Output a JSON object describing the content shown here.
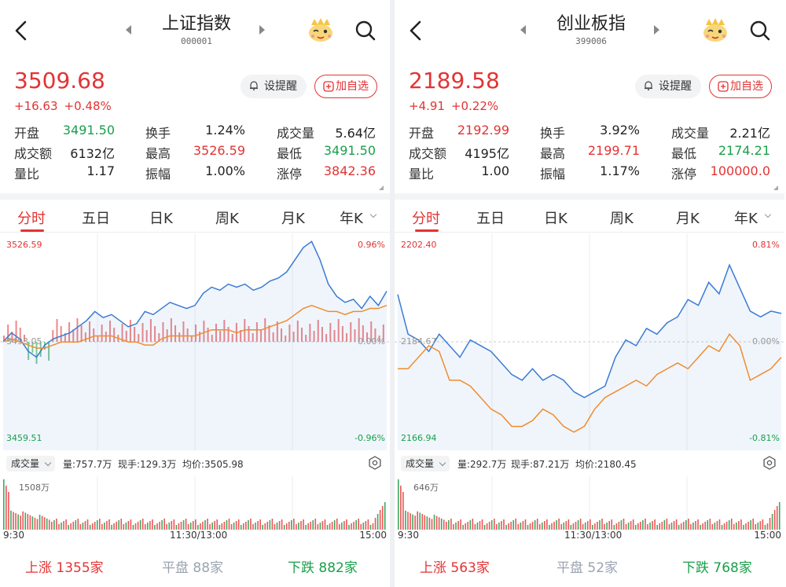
{
  "panels": [
    {
      "title": "上证指数",
      "code": "000001",
      "price": "3509.68",
      "change": "+16.63",
      "change_pct": "+0.48%",
      "alert_label": "设提醒",
      "add_label": "加自选",
      "stats": [
        [
          {
            "label": "开盘",
            "value": "3491.50",
            "color": "grn"
          },
          {
            "label": "换手",
            "value": "1.24%",
            "color": "blk"
          },
          {
            "label": "成交量",
            "value": "5.64亿",
            "color": "blk"
          }
        ],
        [
          {
            "label": "成交额",
            "value": "6132亿",
            "color": "blk"
          },
          {
            "label": "最高",
            "value": "3526.59",
            "color": "red"
          },
          {
            "label": "最低",
            "value": "3491.50",
            "color": "grn"
          }
        ],
        [
          {
            "label": "量比",
            "value": "1.17",
            "color": "blk"
          },
          {
            "label": "振幅",
            "value": "1.00%",
            "color": "blk"
          },
          {
            "label": "涨停",
            "value": "3842.36",
            "color": "red"
          }
        ]
      ],
      "tabs": [
        "分时",
        "五日",
        "日K",
        "周K",
        "月K",
        "年K"
      ],
      "axis": {
        "top_price": "3526.59",
        "mid_price": "3493.05",
        "bottom_price": "3459.51",
        "top_pct": "0.96%",
        "mid_pct": "0.00%",
        "bottom_pct": "-0.96%"
      },
      "vol": {
        "selector": "成交量",
        "amount": "量:757.7万",
        "hand": "现手:129.3万",
        "avg": "均价:3505.98",
        "max_label": "1508万"
      },
      "time": [
        "9:30",
        "11:30/13:00",
        "15:00"
      ],
      "breadth": {
        "up_label": "上涨",
        "up": "1355家",
        "flat_label": "平盘",
        "flat": "88家",
        "down_label": "下跌",
        "down": "882家"
      }
    },
    {
      "title": "创业板指",
      "code": "399006",
      "price": "2189.58",
      "change": "+4.91",
      "change_pct": "+0.22%",
      "alert_label": "设提醒",
      "add_label": "加自选",
      "stats": [
        [
          {
            "label": "开盘",
            "value": "2192.99",
            "color": "red"
          },
          {
            "label": "换手",
            "value": "3.92%",
            "color": "blk"
          },
          {
            "label": "成交量",
            "value": "2.21亿",
            "color": "blk"
          }
        ],
        [
          {
            "label": "成交额",
            "value": "4195亿",
            "color": "blk"
          },
          {
            "label": "最高",
            "value": "2199.71",
            "color": "red"
          },
          {
            "label": "最低",
            "value": "2174.21",
            "color": "grn"
          }
        ],
        [
          {
            "label": "量比",
            "value": "1.00",
            "color": "blk"
          },
          {
            "label": "振幅",
            "value": "1.17%",
            "color": "blk"
          },
          {
            "label": "涨停",
            "value": "100000.0",
            "color": "red"
          }
        ]
      ],
      "tabs": [
        "分时",
        "五日",
        "日K",
        "周K",
        "月K",
        "年K"
      ],
      "axis": {
        "top_price": "2202.40",
        "mid_price": "2184.67",
        "bottom_price": "2166.94",
        "top_pct": "0.81%",
        "mid_pct": "0.00%",
        "bottom_pct": "-0.81%"
      },
      "vol": {
        "selector": "成交量",
        "amount": "量:292.7万",
        "hand": "现手:87.21万",
        "avg": "均价:2180.45",
        "max_label": "646万"
      },
      "time": [
        "9:30",
        "11:30/13:00",
        "15:00"
      ],
      "breadth": {
        "up_label": "上涨",
        "up": "563家",
        "flat_label": "平盘",
        "flat": "52家",
        "down_label": "下跌",
        "down": "768家"
      }
    }
  ],
  "colors": {
    "up": "#e33333",
    "down": "#19a04a",
    "price_line": "#3a7bd5",
    "avg_line": "#f08c2e"
  },
  "chart_data": [
    {
      "type": "line",
      "series": [
        {
          "name": "price",
          "values": [
            3493.1,
            3496,
            3494,
            3490,
            3488,
            3492,
            3494,
            3495,
            3496,
            3498,
            3500,
            3503,
            3501,
            3502,
            3500,
            3498,
            3499,
            3503,
            3502,
            3504,
            3506,
            3505,
            3504,
            3505,
            3509,
            3511,
            3510,
            3512,
            3511,
            3512,
            3510,
            3511,
            3513,
            3514,
            3516,
            3520,
            3524,
            3526,
            3520,
            3512,
            3508,
            3506,
            3507,
            3504,
            3508,
            3505,
            3509.7
          ]
        },
        {
          "name": "avg",
          "values": [
            3493.1,
            3494,
            3493,
            3492,
            3491,
            3491,
            3492,
            3493,
            3493,
            3493,
            3494,
            3495,
            3495,
            3495,
            3494,
            3493,
            3493,
            3492,
            3492,
            3494,
            3495,
            3495,
            3495,
            3495,
            3496,
            3497,
            3497,
            3497,
            3496,
            3497,
            3497,
            3497,
            3498,
            3499,
            3500,
            3502,
            3504,
            3505,
            3504,
            3503,
            3503,
            3502,
            3503,
            3503,
            3504,
            3504,
            3505
          ]
        }
      ],
      "ylim": [
        3459.51,
        3526.59
      ],
      "reference": 3493.05,
      "volume_max": 1508
    },
    {
      "type": "line",
      "series": [
        {
          "name": "price",
          "values": [
            2192.9,
            2186,
            2185,
            2183,
            2186,
            2184,
            2182,
            2185,
            2184,
            2183,
            2181,
            2179,
            2178,
            2180,
            2178,
            2179,
            2178,
            2176,
            2175,
            2176,
            2177,
            2182,
            2185,
            2184,
            2187,
            2186,
            2188,
            2189,
            2192,
            2191,
            2195,
            2193,
            2198,
            2194,
            2190,
            2189,
            2190,
            2189.6
          ]
        },
        {
          "name": "avg",
          "values": [
            2180,
            2180,
            2182,
            2184,
            2183,
            2178,
            2178,
            2177,
            2175,
            2173,
            2172,
            2170,
            2170,
            2171,
            2173,
            2172,
            2170,
            2169,
            2170,
            2173,
            2175,
            2176,
            2177,
            2178,
            2177,
            2179,
            2180,
            2181,
            2180,
            2182,
            2184,
            2183,
            2186,
            2184,
            2178,
            2179,
            2180,
            2182
          ]
        }
      ],
      "ylim": [
        2166.94,
        2202.4
      ],
      "reference": 2184.67,
      "volume_max": 646
    }
  ]
}
